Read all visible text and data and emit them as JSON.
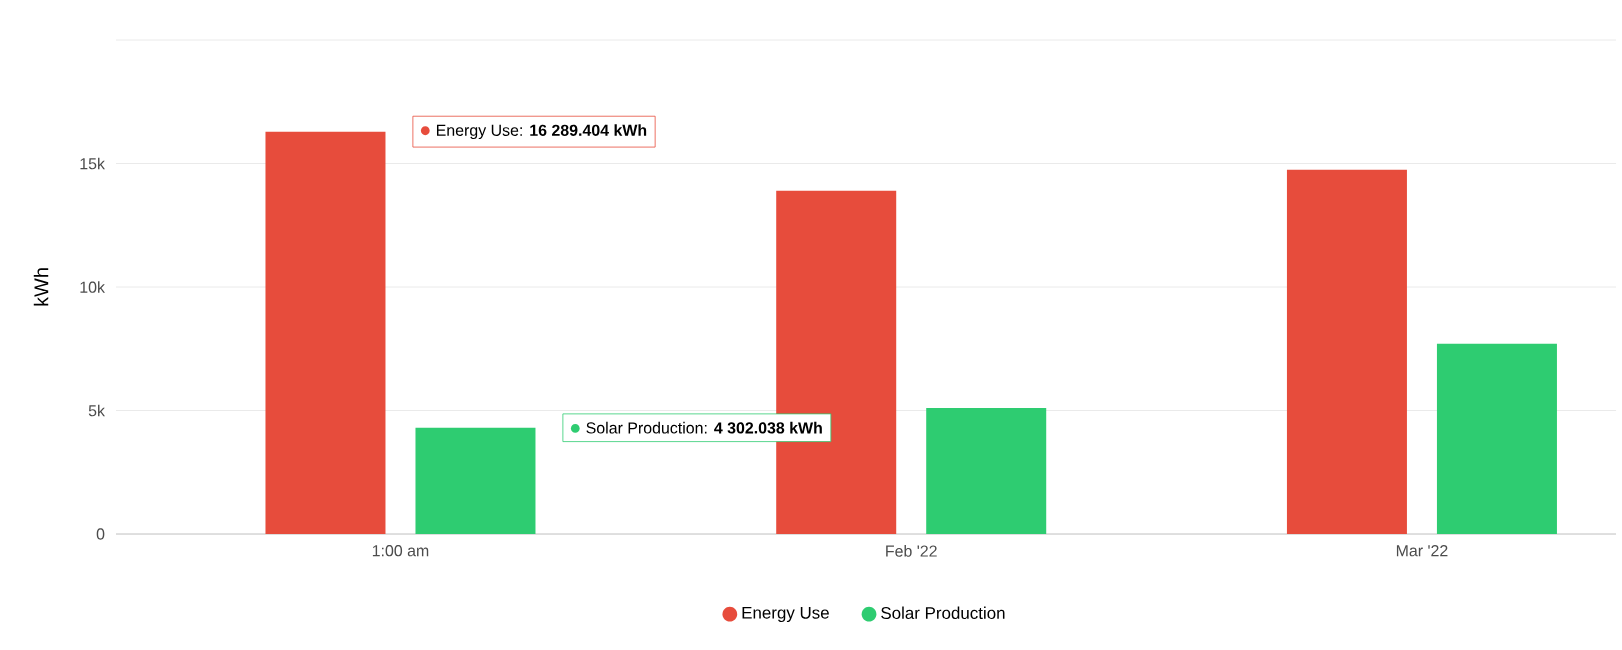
{
  "chart_data": {
    "type": "bar",
    "ylabel": "kWh",
    "categories": [
      "1:00 am",
      "Feb '22",
      "Mar '22"
    ],
    "series": [
      {
        "name": "Energy Use",
        "color": "#e74c3c",
        "values": [
          16289.404,
          13900,
          14750
        ]
      },
      {
        "name": "Solar Production",
        "color": "#2ecc71",
        "values": [
          4302.038,
          5100,
          7700
        ]
      }
    ],
    "ylim": [
      0,
      20000
    ],
    "yticks": [
      0,
      {
        "value": 5000,
        "label": "5k"
      },
      {
        "value": 10000,
        "label": "10k"
      },
      {
        "value": 15000,
        "label": "15k"
      },
      {
        "value": 20000,
        "label": null
      }
    ],
    "grid": "y",
    "legend": "bottom",
    "annotations": [
      "Energy Use: **16 289.404 kWh**",
      "Solar Production: **4 302.038 kWh**"
    ]
  }
}
